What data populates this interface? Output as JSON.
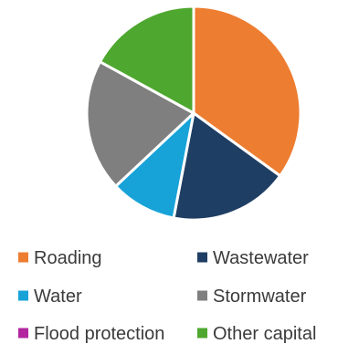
{
  "chart_data": {
    "type": "pie",
    "categories": [
      "Roading",
      "Wastewater",
      "Water",
      "Stormwater",
      "Flood protection",
      "Other capital"
    ],
    "values": [
      35,
      18,
      10,
      20,
      0,
      17
    ],
    "colors": [
      "#ed7d31",
      "#1f3e64",
      "#17a2d8",
      "#7f7f7f",
      "#b2279f",
      "#4ea72e"
    ],
    "start_angle_deg": 0,
    "direction": "clockwise",
    "legend_position": "bottom",
    "legend_items": [
      {
        "label": "Roading",
        "color": "#ed7d31"
      },
      {
        "label": "Wastewater",
        "color": "#1f3e64"
      },
      {
        "label": "Water",
        "color": "#17a2d8"
      },
      {
        "label": "Stormwater",
        "color": "#7f7f7f"
      },
      {
        "label": "Flood protection",
        "color": "#b2279f"
      },
      {
        "label": "Other capital",
        "color": "#4ea72e"
      }
    ]
  }
}
